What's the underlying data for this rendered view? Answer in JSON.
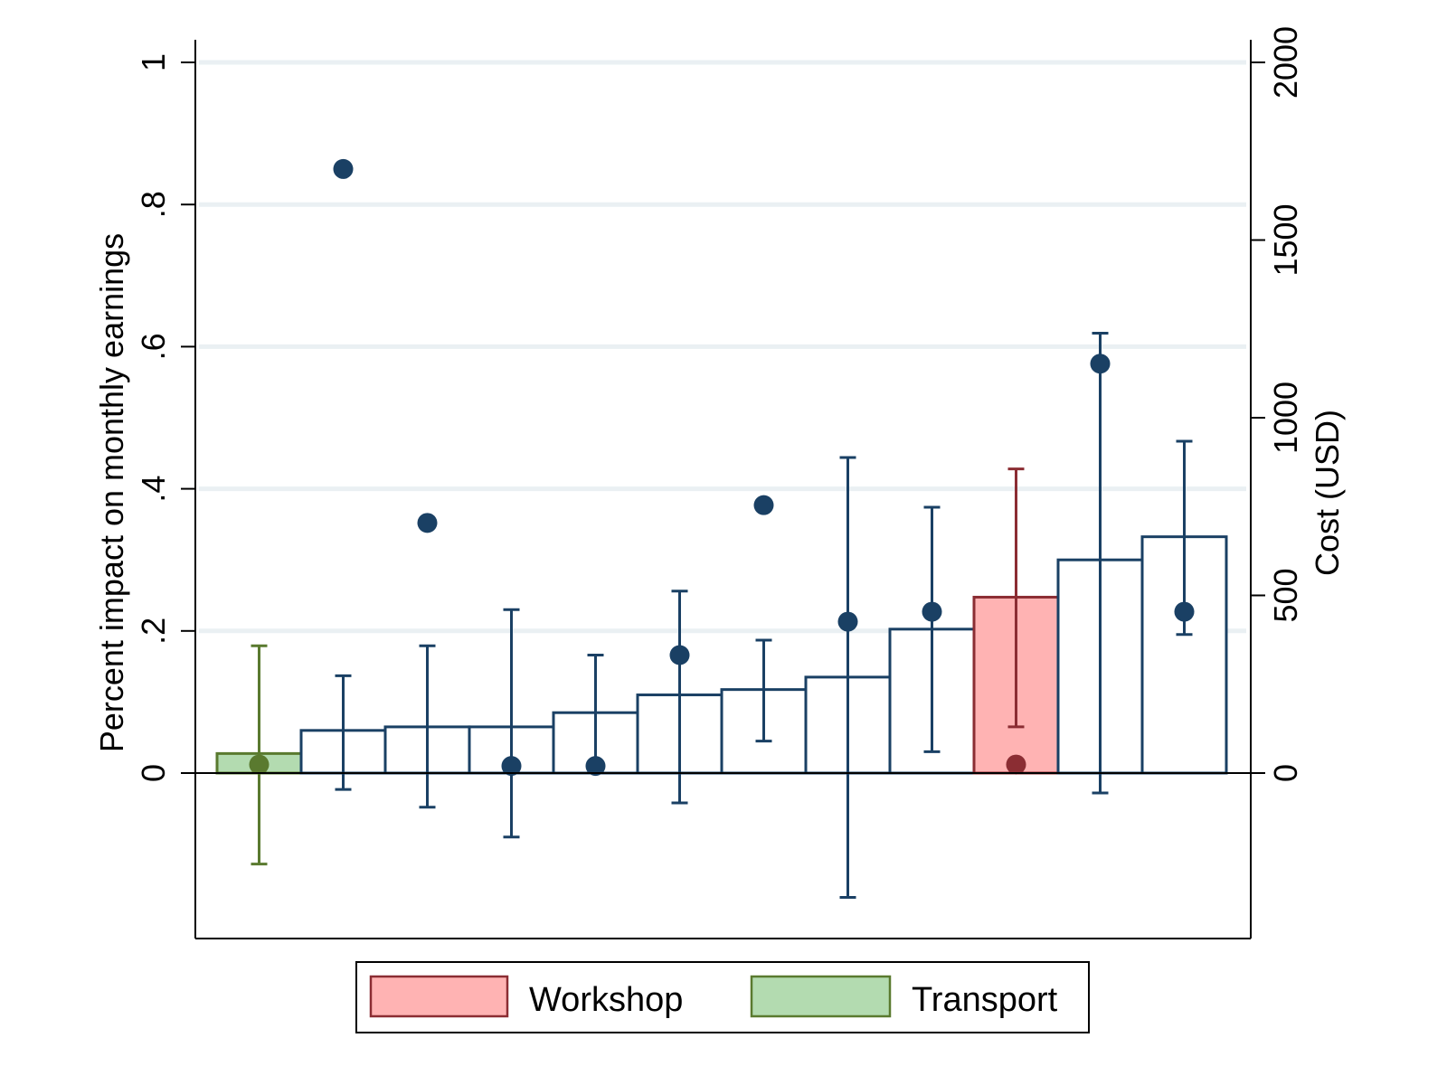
{
  "chart_data": {
    "type": "bar",
    "title": "",
    "ylabel_left": "Percent impact on monthly earnings",
    "ylabel_right": "Cost (USD)",
    "xlabel": "",
    "ylim_left": [
      -0.23,
      1.03
    ],
    "yticks_left": [
      {
        "value": 0,
        "label": "0"
      },
      {
        "value": 0.2,
        "label": ".2"
      },
      {
        "value": 0.4,
        "label": ".4"
      },
      {
        "value": 0.6,
        "label": ".6"
      },
      {
        "value": 0.8,
        "label": ".8"
      },
      {
        "value": 1.0,
        "label": "1"
      }
    ],
    "yticks_right": [
      {
        "value": 0,
        "label": "0"
      },
      {
        "value": 500,
        "label": "500"
      },
      {
        "value": 1000,
        "label": "1000"
      },
      {
        "value": 1500,
        "label": "1500"
      },
      {
        "value": 2000,
        "label": "2000"
      }
    ],
    "right_axis_max": 2000,
    "grid": true,
    "legend_position": "bottom",
    "legend": [
      {
        "label": "Workshop",
        "fill": "#ffb3b3",
        "stroke": "#8b2d33"
      },
      {
        "label": "Transport",
        "fill": "#b3dbb0",
        "stroke": "#5a7a2f"
      }
    ],
    "colors": {
      "default_stroke": "#1a4064",
      "default_fill": "#ffffff",
      "workshop_fill": "#ffb3b3",
      "workshop_stroke": "#8b2d33",
      "transport_fill": "#b3dbb0",
      "transport_stroke": "#5a7a2f",
      "gridline": "#eaf0f3"
    },
    "series": [
      {
        "name": "Cost (USD)",
        "axis": "right",
        "kind": "bar",
        "values": [
          55,
          120,
          130,
          130,
          170,
          220,
          235,
          270,
          405,
          495,
          600,
          665
        ]
      },
      {
        "name": "Percent impact",
        "axis": "left",
        "kind": "point_with_ci",
        "estimate": [
          0.012,
          0.85,
          0.352,
          0.01,
          0.01,
          0.166,
          0.377,
          0.213,
          0.227,
          0.012,
          0.576,
          0.227
        ],
        "ci_low": [
          -0.128,
          -0.023,
          -0.048,
          -0.09,
          null,
          -0.042,
          0.045,
          -0.175,
          0.03,
          0.065,
          -0.028,
          0.195
        ],
        "ci_high": [
          0.179,
          0.137,
          0.179,
          0.23,
          0.166,
          0.256,
          0.187,
          0.444,
          0.374,
          0.428,
          0.619,
          0.467
        ]
      }
    ],
    "bar_groups": [
      "transport",
      "default",
      "default",
      "default",
      "default",
      "default",
      "default",
      "default",
      "default",
      "workshop",
      "default",
      "default"
    ]
  }
}
